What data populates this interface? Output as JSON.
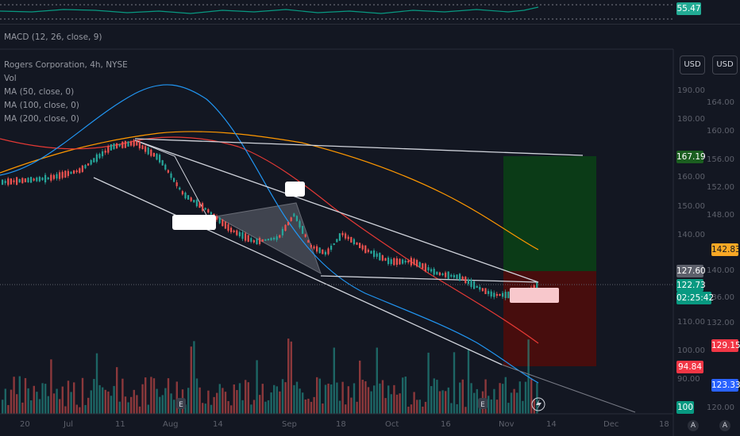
{
  "rsi_pane": {
    "value": "55.47",
    "value_color": "#22ab94"
  },
  "macd_pane": {
    "label": "MACD (12, 26, close, 9)"
  },
  "legend": {
    "symbol": "Rogers Corporation, 4h, NYSE",
    "vol": "Vol",
    "ma50": "MA (50, close, 0)",
    "ma100": "MA (100, close, 0)",
    "ma200": "MA (200, close, 0)"
  },
  "currency_buttons": [
    "USD",
    "USD"
  ],
  "price_axis_right": [
    "164.00",
    "160.00",
    "156.00",
    "152.00",
    "148.00",
    "140.00",
    "136.00",
    "132.00",
    "120.00"
  ],
  "price_axis_left": [
    "190.00",
    "180.00",
    "160.00",
    "150.00",
    "140.00",
    "110.00",
    "100.00",
    "90.00"
  ],
  "price_tags": [
    {
      "text": "167.19",
      "bg": "#1b5e20",
      "color": "#ffffff"
    },
    {
      "text": "142.83",
      "bg": "#f9a825",
      "color": "#131722"
    },
    {
      "text": "127.60",
      "bg": "#5d606b",
      "color": "#ffffff"
    },
    {
      "text": "122.73",
      "bg": "#089981",
      "color": "#ffffff"
    },
    {
      "text": "02:25:42",
      "bg": "#089981",
      "color": "#ffffff"
    },
    {
      "text": "129.15",
      "bg": "#f23645",
      "color": "#ffffff"
    },
    {
      "text": "94.84",
      "bg": "#f23645",
      "color": "#ffffff"
    },
    {
      "text": "123.33",
      "bg": "#2962ff",
      "color": "#ffffff"
    },
    {
      "text": "100",
      "bg": "#089981",
      "color": "#ffffff"
    }
  ],
  "time_axis": [
    "20",
    "Jul",
    "11",
    "Aug",
    "14",
    "Sep",
    "18",
    "Oct",
    "16",
    "Nov",
    "14",
    "Dec",
    "18"
  ],
  "corner_icons": {
    "auto": "A",
    "log": "A"
  },
  "colors": {
    "background": "#131722",
    "ma50": "#2196f3",
    "ma100": "#e53935",
    "ma200": "#ff9800",
    "up_candle": "#26a69a",
    "down_candle": "#ef5350",
    "trendline": "#d1d4dc",
    "target_zone": "#0b3d17",
    "stop_zone": "#4a0d0d"
  }
}
